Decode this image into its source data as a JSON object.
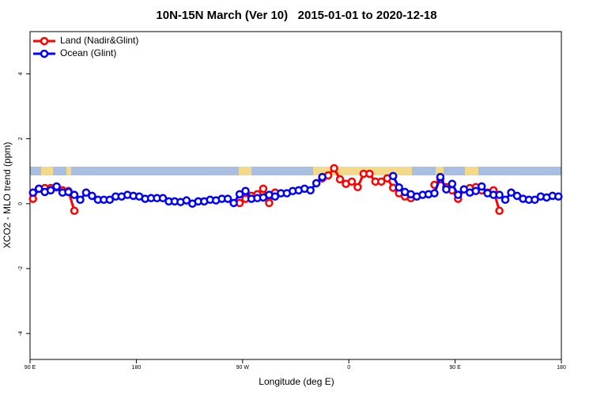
{
  "chart_data": {
    "type": "line",
    "title": "10N-15N March (Ver 10)   2015-01-01 to 2020-12-18",
    "x_label": "Longitude (deg E)",
    "y_label": "XCO2 - MLO trend (ppm)",
    "x": [
      92.5,
      97.5,
      102.5,
      107.5,
      112.5,
      117.5,
      122.5,
      127.5,
      132.5,
      137.5,
      142.5,
      147.5,
      152.5,
      157.5,
      162.5,
      167.5,
      172.5,
      177.5,
      182.5,
      187.5,
      192.5,
      197.5,
      202.5,
      207.5,
      212.5,
      217.5,
      222.5,
      227.5,
      232.5,
      237.5,
      242.5,
      247.5,
      252.5,
      257.5,
      262.5,
      267.5,
      272.5,
      277.5,
      282.5,
      287.5,
      292.5,
      297.5,
      302.5,
      307.5,
      312.5,
      317.5,
      322.5,
      327.5,
      332.5,
      337.5,
      342.5,
      347.5,
      352.5,
      357.5,
      362.5,
      367.5,
      372.5,
      377.5,
      382.5,
      387.5,
      392.5,
      397.5,
      402.5,
      407.5,
      412.5,
      417.5,
      422.5,
      427.5,
      432.5,
      437.5,
      442.5,
      447.5,
      452.5,
      457.5,
      462.5,
      467.5,
      472.5,
      477.5,
      482.5,
      487.5,
      492.5,
      497.5,
      502.5,
      507.5,
      512.5,
      517.5,
      522.5,
      527.5,
      532.5,
      537.5
    ],
    "series": [
      {
        "name": "Land (Nadir&Glint)",
        "color": "#ff0000",
        "values": [
          0.15,
          0.46,
          0.48,
          0.48,
          0.5,
          0.41,
          0.39,
          -0.22,
          null,
          null,
          null,
          null,
          null,
          null,
          null,
          null,
          null,
          null,
          null,
          null,
          null,
          null,
          null,
          null,
          null,
          null,
          null,
          null,
          null,
          null,
          null,
          null,
          null,
          null,
          null,
          0.02,
          0.15,
          0.24,
          0.29,
          0.46,
          0.02,
          0.34,
          null,
          null,
          null,
          null,
          null,
          null,
          null,
          0.78,
          0.87,
          1.09,
          0.75,
          0.61,
          0.68,
          0.51,
          0.92,
          0.92,
          0.68,
          0.68,
          0.78,
          0.49,
          0.32,
          0.22,
          0.17,
          null,
          null,
          null,
          0.58,
          0.75,
          0.51,
          0.41,
          0.15,
          0.44,
          0.48,
          0.51,
          0.41,
          0.34,
          0.41,
          -0.22,
          null,
          null,
          null,
          null,
          null,
          null,
          null,
          null,
          null,
          null
        ]
      },
      {
        "name": "Ocean (Glint)",
        "color": "#0000ff",
        "values": [
          0.34,
          0.46,
          0.36,
          0.41,
          0.53,
          0.34,
          0.36,
          0.27,
          0.12,
          0.34,
          0.24,
          0.12,
          0.12,
          0.12,
          0.22,
          0.22,
          0.27,
          0.24,
          0.22,
          0.15,
          0.17,
          0.17,
          0.17,
          0.07,
          0.07,
          0.05,
          0.1,
          0,
          0.07,
          0.07,
          0.12,
          0.1,
          0.15,
          0.15,
          0.02,
          0.29,
          0.39,
          0.15,
          0.17,
          0.19,
          0.27,
          0.22,
          0.32,
          0.32,
          0.39,
          0.41,
          0.46,
          0.41,
          0.63,
          0.82,
          null,
          null,
          null,
          null,
          null,
          null,
          null,
          null,
          null,
          null,
          null,
          0.85,
          0.5,
          0.36,
          0.29,
          0.22,
          0.27,
          0.29,
          0.32,
          0.82,
          0.44,
          0.61,
          0.27,
          0.44,
          0.34,
          0.39,
          0.53,
          0.32,
          0.27,
          0.27,
          0.12,
          0.34,
          0.24,
          0.15,
          0.12,
          0.12,
          0.22,
          0.19,
          0.24,
          0.22
        ]
      }
    ],
    "xlim": [
      90,
      540
    ],
    "xticks": [
      {
        "value": 90,
        "label": "90 E"
      },
      180,
      {
        "value": 270,
        "label": "90 W"
      },
      {
        "value": 360,
        "label": "0"
      },
      {
        "value": 450,
        "label": "90 E"
      },
      {
        "value": 540,
        "label": "180"
      }
    ],
    "ylim": [
      -4.8,
      5.3
    ],
    "yticks": [
      -4,
      -2,
      0,
      2,
      4
    ],
    "legend": "top-left"
  }
}
